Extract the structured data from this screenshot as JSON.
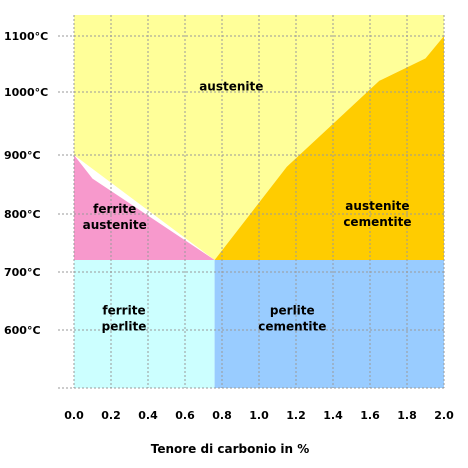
{
  "axis_title": "Tenore di carbonio in %",
  "y_ticks": [
    {
      "value": 1100,
      "label": "1100°C"
    },
    {
      "value": 1000,
      "label": "1000°C"
    },
    {
      "value": 900,
      "label": "900°C"
    },
    {
      "value": 800,
      "label": "800°C"
    },
    {
      "value": 700,
      "label": "700°C"
    },
    {
      "value": 600,
      "label": "600°C"
    }
  ],
  "x_ticks": [
    {
      "value": 0.0,
      "label": "0.0"
    },
    {
      "value": 0.2,
      "label": "0.2"
    },
    {
      "value": 0.4,
      "label": "0.4"
    },
    {
      "value": 0.6,
      "label": "0.6"
    },
    {
      "value": 0.8,
      "label": "0.8"
    },
    {
      "value": 1.0,
      "label": "1.0"
    },
    {
      "value": 1.2,
      "label": "1.2"
    },
    {
      "value": 1.4,
      "label": "1.4"
    },
    {
      "value": 1.6,
      "label": "1.6"
    },
    {
      "value": 1.8,
      "label": "1.8"
    },
    {
      "value": 2.0,
      "label": "2.0"
    }
  ],
  "regions": [
    {
      "name": "austenite",
      "lines": [
        "austenite"
      ],
      "color": "#ffff99",
      "label_at": {
        "x": 0.85,
        "y": 1010
      },
      "polygon": [
        [
          0.0,
          1130
        ],
        [
          2.0,
          1130
        ],
        [
          2.0,
          1100
        ],
        [
          1.9,
          1060
        ],
        [
          1.65,
          1020
        ],
        [
          1.15,
          880
        ],
        [
          0.76,
          727
        ],
        [
          0.0,
          900
        ]
      ]
    },
    {
      "name": "ferrite-austenite",
      "lines": [
        "ferrite",
        "austenite"
      ],
      "color": "#f799cc",
      "label_at": {
        "x": 0.22,
        "y": 795
      },
      "polygon": [
        [
          0.0,
          900
        ],
        [
          0.1,
          860
        ],
        [
          0.76,
          727
        ],
        [
          0.0,
          727
        ]
      ]
    },
    {
      "name": "austenite-cementite",
      "lines": [
        "austenite",
        "cementite"
      ],
      "color": "#ffcc00",
      "label_at": {
        "x": 1.64,
        "y": 800
      },
      "polygon": [
        [
          0.76,
          727
        ],
        [
          1.15,
          880
        ],
        [
          1.65,
          1020
        ],
        [
          1.9,
          1060
        ],
        [
          2.0,
          1100
        ],
        [
          2.0,
          727
        ]
      ]
    },
    {
      "name": "ferrite-perlite",
      "lines": [
        "ferrite",
        "perlite"
      ],
      "color": "#ccffff",
      "label_at": {
        "x": 0.27,
        "y": 620
      },
      "polygon": [
        [
          0.0,
          727
        ],
        [
          0.76,
          727
        ],
        [
          0.76,
          510
        ],
        [
          0.0,
          510
        ]
      ]
    },
    {
      "name": "perlite-cementite",
      "lines": [
        "perlite",
        "cementite"
      ],
      "color": "#99ccff",
      "label_at": {
        "x": 1.18,
        "y": 620
      },
      "polygon": [
        [
          0.76,
          727
        ],
        [
          2.0,
          727
        ],
        [
          2.0,
          510
        ],
        [
          0.76,
          510
        ]
      ]
    }
  ]
}
